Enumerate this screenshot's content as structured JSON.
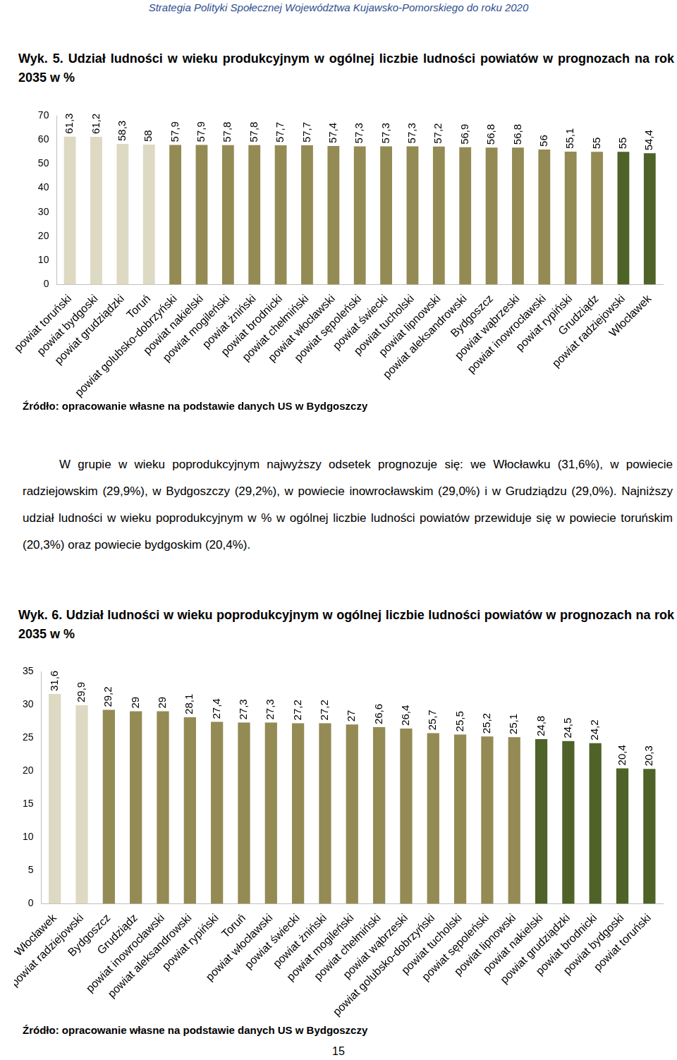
{
  "header": "Strategia Polityki Społecznej Województwa Kujawsko-Pomorskiego do roku 2020",
  "chart_data": [
    {
      "type": "bar",
      "title": "Wyk. 5. Udział ludności w wieku produkcyjnym w ogólnej liczbie ludności powiatów w prognozach na rok 2035 w %",
      "source": "Źródło: opracowanie własne na podstawie danych US w Bydgoszczy",
      "categories": [
        "powiat toruński",
        "powiat bydgoski",
        "powiat grudziądzki",
        "Toruń",
        "powiat golubsko-dobrzyński",
        "powiat nakielski",
        "powiat mogileński",
        "powiat żniński",
        "powiat brodnicki",
        "powiat chełmiński",
        "powiat włocławski",
        "powiat sępoleński",
        "powiat świecki",
        "powiat tucholski",
        "powiat lipnowski",
        "powiat aleksandrowski",
        "Bydgoszcz",
        "powiat wąbrzeski",
        "powiat inowrocławski",
        "powiat rypiński",
        "Grudziądz",
        "powiat radziejowski",
        "Włocławek"
      ],
      "values": [
        61.3,
        61.2,
        58.3,
        58,
        57.9,
        57.9,
        57.8,
        57.8,
        57.7,
        57.7,
        57.4,
        57.3,
        57.3,
        57.3,
        57.2,
        56.9,
        56.8,
        56.8,
        56,
        55.1,
        55,
        55,
        54.4
      ],
      "value_labels": [
        "61,3",
        "61,2",
        "58,3",
        "58",
        "57,9",
        "57,9",
        "57,8",
        "57,8",
        "57,7",
        "57,7",
        "57,4",
        "57,3",
        "57,3",
        "57,3",
        "57,2",
        "56,9",
        "56,8",
        "56,8",
        "56",
        "55,1",
        "55",
        "55",
        "54,4"
      ],
      "colors": [
        "#ddd9c3",
        "#ddd9c3",
        "#ddd9c3",
        "#ddd9c3",
        "#948a54",
        "#948a54",
        "#948a54",
        "#948a54",
        "#948a54",
        "#948a54",
        "#948a54",
        "#948a54",
        "#948a54",
        "#948a54",
        "#948a54",
        "#948a54",
        "#948a54",
        "#948a54",
        "#948a54",
        "#948a54",
        "#948a54",
        "#4f6228",
        "#4f6228"
      ],
      "ylim": [
        0,
        70
      ],
      "yticks": [
        0,
        10,
        20,
        30,
        40,
        50,
        60,
        70
      ],
      "grid": false,
      "data_labels": true
    },
    {
      "type": "bar",
      "title": "Wyk. 6. Udział ludności w wieku poprodukcyjnym w ogólnej liczbie ludności powiatów w prognozach na rok 2035 w %",
      "source": "Źródło: opracowanie własne na podstawie danych US w Bydgoszczy",
      "categories": [
        "Włocławek",
        "powiat radziejowski",
        "Bydgoszcz",
        "Grudziądz",
        "powiat inowrocławski",
        "powiat aleksandrowski",
        "powiat rypiński",
        "Toruń",
        "powiat włocławski",
        "powiat świecki",
        "powiat żniński",
        "powiat mogileński",
        "powiat chełmiński",
        "powiat wąbrzeski",
        "powiat golubsko-dobrzyński",
        "powiat tucholski",
        "powiat sępoleński",
        "powiat lipnowski",
        "powiat nakielski",
        "powiat grudziądzki",
        "powiat brodnicki",
        "powiat bydgoski",
        "powiat toruński"
      ],
      "values": [
        31.6,
        29.9,
        29.2,
        29,
        29,
        28.1,
        27.4,
        27.3,
        27.3,
        27.2,
        27.2,
        27,
        26.6,
        26.4,
        25.7,
        25.5,
        25.2,
        25.1,
        24.8,
        24.5,
        24.2,
        20.4,
        20.3
      ],
      "value_labels": [
        "31,6",
        "29,9",
        "29,2",
        "29",
        "29",
        "28,1",
        "27,4",
        "27,3",
        "27,3",
        "27,2",
        "27,2",
        "27",
        "26,6",
        "26,4",
        "25,7",
        "25,5",
        "25,2",
        "25,1",
        "24,8",
        "24,5",
        "24,2",
        "20,4",
        "20,3"
      ],
      "colors": [
        "#ddd9c3",
        "#ddd9c3",
        "#948a54",
        "#948a54",
        "#948a54",
        "#948a54",
        "#948a54",
        "#948a54",
        "#948a54",
        "#948a54",
        "#948a54",
        "#948a54",
        "#948a54",
        "#948a54",
        "#948a54",
        "#948a54",
        "#948a54",
        "#948a54",
        "#4f6228",
        "#4f6228",
        "#4f6228",
        "#4f6228",
        "#4f6228"
      ],
      "ylim": [
        0,
        35
      ],
      "yticks": [
        0,
        5,
        10,
        15,
        20,
        25,
        30,
        35
      ],
      "grid": false,
      "data_labels": true
    }
  ],
  "paragraph": "W grupie w wieku poprodukcyjnym najwyższy odsetek prognozuje się: we Włocławku (31,6%), w powiecie radziejowskim (29,9%), w Bydgoszczy (29,2%), w powiecie inowrocławskim (29,0%) i w Grudziądzu (29,0%). Najniższy udział ludności w wieku poprodukcyjnym w % w ogólnej liczbie ludności powiatów przewiduje się  w powiecie toruńskim (20,3%) oraz powiecie bydgoskim (20,4%).",
  "page_number": "15"
}
